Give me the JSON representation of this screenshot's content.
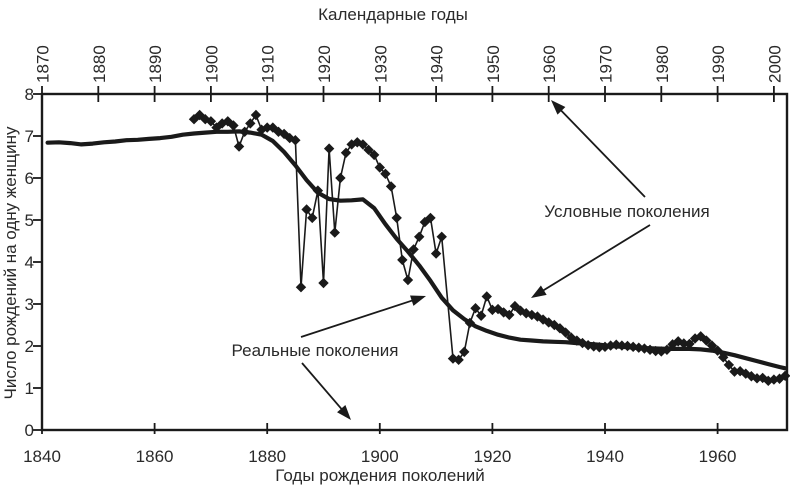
{
  "figure": {
    "top_axis_title": "Календарные годы",
    "bottom_axis_title": "Годы рождения поколений",
    "y_axis_title": "Число рождений на одну женщину",
    "background": "#ffffff",
    "line_color": "#1a1a1a",
    "text_color": "#2a2a2a"
  },
  "annotations": [
    {
      "label": "Условные поколения",
      "series": "conditional"
    },
    {
      "label": "Реальные поколения",
      "series": "real"
    }
  ],
  "chart_data": {
    "type": "line",
    "title": "",
    "top_xlabel": "Календарные годы",
    "xlabel": "Годы рождения поколений",
    "ylabel": "Число рождений на одну женщину",
    "ylim": [
      0,
      8
    ],
    "grid": false,
    "legend_position": "none",
    "y_ticks": [
      0,
      1,
      2,
      3,
      4,
      5,
      6,
      7,
      8
    ],
    "x_ticks_calendar": [
      1870,
      1880,
      1890,
      1900,
      1910,
      1920,
      1930,
      1940,
      1950,
      1960,
      1970,
      1980,
      1990,
      2000
    ],
    "x_ticks_cohort": [
      1840,
      1860,
      1880,
      1900,
      1920,
      1940,
      1960
    ],
    "calendar_to_cohort_offset_years": 30,
    "xlim_calendar": [
      1870,
      2003
    ],
    "xlim_cohort": [
      1840,
      1973
    ],
    "series": [
      {
        "id": "conditional",
        "name": "Условные поколения",
        "axis": "calendar",
        "marker": "diamond",
        "line_width": 1.6,
        "data": [
          [
            1897,
            7.4
          ],
          [
            1898,
            7.5
          ],
          [
            1899,
            7.4
          ],
          [
            1900,
            7.35
          ],
          [
            1901,
            7.2
          ],
          [
            1902,
            7.3
          ],
          [
            1903,
            7.35
          ],
          [
            1904,
            7.25
          ],
          [
            1905,
            6.75
          ],
          [
            1906,
            7.1
          ],
          [
            1907,
            7.3
          ],
          [
            1908,
            7.5
          ],
          [
            1909,
            7.15
          ],
          [
            1910,
            7.2
          ],
          [
            1911,
            7.2
          ],
          [
            1912,
            7.1
          ],
          [
            1913,
            7.05
          ],
          [
            1914,
            6.95
          ],
          [
            1915,
            6.9
          ],
          [
            1916,
            3.4
          ],
          [
            1917,
            5.25
          ],
          [
            1918,
            5.05
          ],
          [
            1919,
            5.7
          ],
          [
            1920,
            3.5
          ],
          [
            1921,
            6.7
          ],
          [
            1922,
            4.7
          ],
          [
            1923,
            6.0
          ],
          [
            1924,
            6.6
          ],
          [
            1925,
            6.8
          ],
          [
            1926,
            6.85
          ],
          [
            1927,
            6.8
          ],
          [
            1928,
            6.67
          ],
          [
            1929,
            6.55
          ],
          [
            1930,
            6.25
          ],
          [
            1931,
            6.1
          ],
          [
            1932,
            5.8
          ],
          [
            1933,
            5.05
          ],
          [
            1934,
            4.05
          ],
          [
            1935,
            3.57
          ],
          [
            1936,
            4.3
          ],
          [
            1937,
            4.6
          ],
          [
            1938,
            4.95
          ],
          [
            1939,
            5.05
          ],
          [
            1940,
            4.2
          ],
          [
            1941,
            4.6
          ],
          [
            1943,
            1.7
          ],
          [
            1944,
            1.67
          ],
          [
            1945,
            1.86
          ],
          [
            1946,
            2.55
          ],
          [
            1947,
            2.9
          ],
          [
            1948,
            2.72
          ],
          [
            1949,
            3.18
          ],
          [
            1950,
            2.86
          ],
          [
            1951,
            2.88
          ],
          [
            1952,
            2.8
          ],
          [
            1953,
            2.74
          ],
          [
            1954,
            2.95
          ],
          [
            1955,
            2.84
          ],
          [
            1956,
            2.78
          ],
          [
            1957,
            2.74
          ],
          [
            1958,
            2.7
          ],
          [
            1959,
            2.63
          ],
          [
            1960,
            2.56
          ],
          [
            1961,
            2.5
          ],
          [
            1962,
            2.42
          ],
          [
            1963,
            2.32
          ],
          [
            1964,
            2.2
          ],
          [
            1965,
            2.13
          ],
          [
            1966,
            2.07
          ],
          [
            1967,
            2.02
          ],
          [
            1968,
            1.99
          ],
          [
            1969,
            1.97
          ],
          [
            1970,
            1.98
          ],
          [
            1971,
            2.01
          ],
          [
            1972,
            2.03
          ],
          [
            1973,
            2.01
          ],
          [
            1974,
            2.0
          ],
          [
            1975,
            1.98
          ],
          [
            1976,
            1.96
          ],
          [
            1977,
            1.94
          ],
          [
            1978,
            1.91
          ],
          [
            1979,
            1.88
          ],
          [
            1980,
            1.87
          ],
          [
            1981,
            1.91
          ],
          [
            1982,
            2.04
          ],
          [
            1983,
            2.11
          ],
          [
            1984,
            2.06
          ],
          [
            1985,
            2.05
          ],
          [
            1986,
            2.18
          ],
          [
            1987,
            2.23
          ],
          [
            1988,
            2.13
          ],
          [
            1989,
            2.01
          ],
          [
            1990,
            1.89
          ],
          [
            1991,
            1.73
          ],
          [
            1992,
            1.55
          ],
          [
            1993,
            1.39
          ],
          [
            1994,
            1.4
          ],
          [
            1995,
            1.34
          ],
          [
            1996,
            1.28
          ],
          [
            1997,
            1.23
          ],
          [
            1998,
            1.24
          ],
          [
            1999,
            1.17
          ],
          [
            2000,
            1.2
          ],
          [
            2001,
            1.22
          ],
          [
            2002,
            1.29
          ]
        ]
      },
      {
        "id": "real",
        "name": "Реальные поколения",
        "axis": "cohort",
        "marker": "none",
        "line_width": 4.2,
        "data": [
          [
            1841,
            6.84
          ],
          [
            1843,
            6.85
          ],
          [
            1845,
            6.83
          ],
          [
            1847,
            6.8
          ],
          [
            1849,
            6.82
          ],
          [
            1851,
            6.85
          ],
          [
            1853,
            6.87
          ],
          [
            1855,
            6.9
          ],
          [
            1857,
            6.91
          ],
          [
            1859,
            6.93
          ],
          [
            1861,
            6.95
          ],
          [
            1863,
            6.98
          ],
          [
            1865,
            7.03
          ],
          [
            1867,
            7.06
          ],
          [
            1869,
            7.08
          ],
          [
            1871,
            7.1
          ],
          [
            1873,
            7.1
          ],
          [
            1875,
            7.11
          ],
          [
            1877,
            7.08
          ],
          [
            1879,
            7.03
          ],
          [
            1881,
            6.88
          ],
          [
            1883,
            6.62
          ],
          [
            1885,
            6.3
          ],
          [
            1887,
            5.95
          ],
          [
            1889,
            5.65
          ],
          [
            1891,
            5.5
          ],
          [
            1893,
            5.46
          ],
          [
            1895,
            5.47
          ],
          [
            1897,
            5.49
          ],
          [
            1899,
            5.28
          ],
          [
            1901,
            4.9
          ],
          [
            1903,
            4.55
          ],
          [
            1905,
            4.25
          ],
          [
            1907,
            3.92
          ],
          [
            1909,
            3.55
          ],
          [
            1911,
            3.15
          ],
          [
            1913,
            2.85
          ],
          [
            1915,
            2.64
          ],
          [
            1917,
            2.47
          ],
          [
            1919,
            2.36
          ],
          [
            1921,
            2.27
          ],
          [
            1923,
            2.2
          ],
          [
            1925,
            2.15
          ],
          [
            1927,
            2.13
          ],
          [
            1929,
            2.11
          ],
          [
            1931,
            2.1
          ],
          [
            1933,
            2.09
          ],
          [
            1935,
            2.07
          ],
          [
            1937,
            2.05
          ],
          [
            1939,
            2.03
          ],
          [
            1941,
            2.0
          ],
          [
            1943,
            1.98
          ],
          [
            1945,
            1.96
          ],
          [
            1947,
            1.95
          ],
          [
            1949,
            1.94
          ],
          [
            1951,
            1.93
          ],
          [
            1953,
            1.93
          ],
          [
            1955,
            1.93
          ],
          [
            1957,
            1.92
          ],
          [
            1959,
            1.89
          ],
          [
            1961,
            1.84
          ],
          [
            1963,
            1.78
          ],
          [
            1965,
            1.71
          ],
          [
            1967,
            1.64
          ],
          [
            1969,
            1.57
          ],
          [
            1971,
            1.5
          ],
          [
            1972,
            1.47
          ]
        ]
      }
    ]
  }
}
